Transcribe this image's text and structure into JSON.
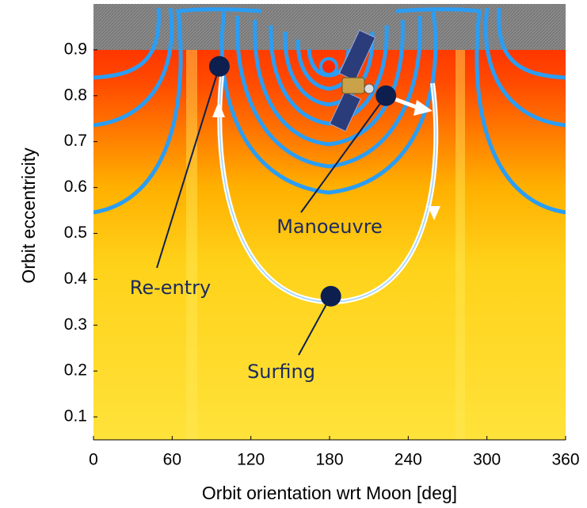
{
  "chart_data": {
    "type": "scatter",
    "xlabel": "Orbit orientation wrt Moon [deg]",
    "ylabel": "Orbit eccentricity",
    "xlim": [
      0,
      360
    ],
    "ylim": [
      0.05,
      1.0
    ],
    "xticks": [
      0,
      60,
      120,
      180,
      240,
      300,
      360
    ],
    "yticks": [
      0.1,
      0.2,
      0.3,
      0.4,
      0.5,
      0.6,
      0.7,
      0.8,
      0.9
    ],
    "x": [
      96,
      223,
      181
    ],
    "values": [
      0.864,
      0.8,
      0.363
    ],
    "labels": [
      "Re-entry",
      "Manoeuvre",
      "Surfing"
    ],
    "color": "#0d1f4f"
  }
}
